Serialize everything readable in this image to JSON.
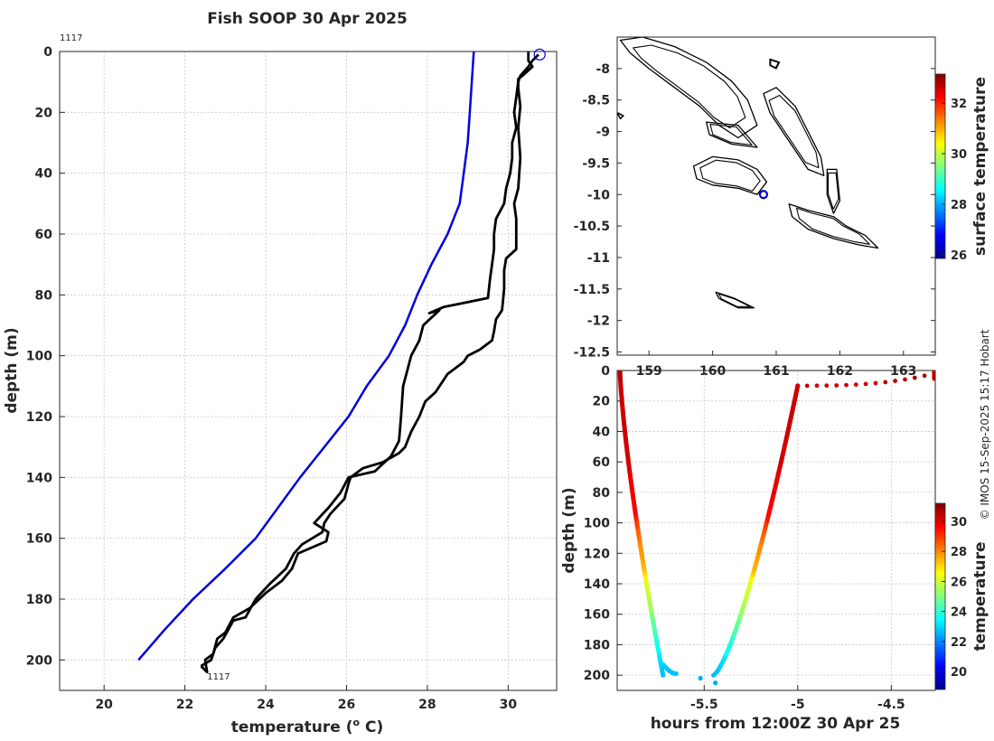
{
  "title": "Fish SOOP 30 Apr 2025",
  "credit": "© IMOS 15-Sep-2025 15:17 Hobart",
  "chart_data": [
    {
      "type": "line",
      "name": "profile-plot",
      "xlabel": "temperature (",
      "xlabel_sup": "o",
      "xlabel_unit": " C)",
      "ylabel": "depth (m)",
      "xlim": [
        18.9,
        31.2
      ],
      "ylim": [
        0,
        210
      ],
      "xticks": [
        20,
        22,
        24,
        26,
        28,
        30
      ],
      "yticks": [
        0,
        20,
        40,
        60,
        80,
        100,
        120,
        140,
        160,
        180,
        200
      ],
      "top_annotation": "1117",
      "bottom_annotation": "1117",
      "series": [
        {
          "name": "climatology",
          "color": "#0000dd",
          "points": [
            [
              29.15,
              0
            ],
            [
              29.1,
              10
            ],
            [
              29.05,
              20
            ],
            [
              29.0,
              30
            ],
            [
              28.9,
              40
            ],
            [
              28.8,
              50
            ],
            [
              28.5,
              60
            ],
            [
              28.1,
              70
            ],
            [
              27.75,
              80
            ],
            [
              27.45,
              90
            ],
            [
              27.05,
              100
            ],
            [
              26.5,
              110
            ],
            [
              26.05,
              120
            ],
            [
              25.45,
              130
            ],
            [
              24.85,
              140
            ],
            [
              24.3,
              150
            ],
            [
              23.75,
              160
            ],
            [
              23.0,
              170
            ],
            [
              22.2,
              180
            ],
            [
              21.5,
              190
            ],
            [
              20.85,
              200
            ]
          ]
        },
        {
          "name": "profile-descent",
          "color": "#000000",
          "points": [
            [
              30.5,
              0
            ],
            [
              30.5,
              3
            ],
            [
              30.6,
              5
            ],
            [
              30.35,
              8
            ],
            [
              30.25,
              9
            ],
            [
              30.25,
              12
            ],
            [
              30.3,
              18
            ],
            [
              30.25,
              25
            ],
            [
              30.3,
              35
            ],
            [
              30.25,
              45
            ],
            [
              30.15,
              50
            ],
            [
              30.2,
              55
            ],
            [
              30.2,
              60
            ],
            [
              30.2,
              65
            ],
            [
              29.95,
              68
            ],
            [
              29.9,
              72
            ],
            [
              29.9,
              78
            ],
            [
              29.85,
              85
            ],
            [
              29.7,
              88
            ],
            [
              29.65,
              92
            ],
            [
              29.6,
              95
            ],
            [
              29.3,
              98
            ],
            [
              29.0,
              100
            ],
            [
              28.9,
              102
            ],
            [
              28.5,
              106
            ],
            [
              28.2,
              112
            ],
            [
              27.95,
              115
            ],
            [
              27.8,
              120
            ],
            [
              27.6,
              125
            ],
            [
              27.45,
              130
            ],
            [
              27.3,
              132
            ],
            [
              26.9,
              135
            ],
            [
              26.4,
              137
            ],
            [
              26.1,
              140
            ],
            [
              26.05,
              142
            ],
            [
              25.95,
              147
            ],
            [
              25.6,
              152
            ],
            [
              25.45,
              155
            ],
            [
              25.4,
              158
            ],
            [
              24.9,
              162
            ],
            [
              24.7,
              165
            ],
            [
              24.5,
              170
            ],
            [
              24.1,
              175
            ],
            [
              23.75,
              180
            ],
            [
              23.5,
              186
            ],
            [
              23.2,
              187
            ],
            [
              22.95,
              193
            ],
            [
              22.75,
              196
            ],
            [
              22.65,
              200
            ],
            [
              22.4,
              202
            ]
          ]
        },
        {
          "name": "profile-ascent",
          "color": "#000000",
          "points": [
            [
              22.4,
              202
            ],
            [
              22.55,
              204
            ],
            [
              22.5,
              200
            ],
            [
              22.7,
              198
            ],
            [
              22.8,
              193
            ],
            [
              23.0,
              191
            ],
            [
              23.2,
              186
            ],
            [
              23.6,
              183
            ],
            [
              24.0,
              178
            ],
            [
              24.4,
              174
            ],
            [
              24.65,
              170
            ],
            [
              24.8,
              165
            ],
            [
              25.5,
              161
            ],
            [
              25.55,
              158
            ],
            [
              25.2,
              155
            ],
            [
              25.55,
              150
            ],
            [
              25.85,
              145
            ],
            [
              26.05,
              140
            ],
            [
              26.7,
              138
            ],
            [
              27.1,
              133
            ],
            [
              27.3,
              128
            ],
            [
              27.35,
              120
            ],
            [
              27.4,
              110
            ],
            [
              27.5,
              105
            ],
            [
              27.6,
              100
            ],
            [
              27.8,
              95
            ],
            [
              27.9,
              90
            ],
            [
              28.3,
              85
            ],
            [
              28.05,
              86
            ],
            [
              28.4,
              84
            ],
            [
              29.5,
              81
            ],
            [
              29.55,
              75
            ],
            [
              29.6,
              70
            ],
            [
              29.65,
              65
            ],
            [
              29.65,
              60
            ],
            [
              29.7,
              55
            ],
            [
              29.9,
              50
            ],
            [
              29.95,
              45
            ],
            [
              30.05,
              40
            ],
            [
              30.1,
              35
            ],
            [
              30.1,
              30
            ],
            [
              30.2,
              25
            ],
            [
              30.15,
              20
            ],
            [
              30.2,
              15
            ],
            [
              30.25,
              10
            ],
            [
              30.3,
              8
            ],
            [
              30.5,
              5
            ],
            [
              30.6,
              3
            ],
            [
              30.75,
              1
            ]
          ]
        }
      ],
      "marker_point": [
        30.78,
        1
      ]
    },
    {
      "type": "map",
      "name": "location-map",
      "colorbar_label": "surface temperature",
      "colorbar_range": [
        25.85,
        33.15
      ],
      "colorbar_ticks": [
        26,
        28,
        30,
        32
      ],
      "xlim": [
        158.5,
        163.5
      ],
      "ylim": [
        -12.55,
        -7.5
      ],
      "xticks": [
        159,
        160,
        161,
        162,
        163
      ],
      "yticks": [
        -8,
        -8.5,
        -9,
        -9.5,
        -10,
        -10.5,
        -11,
        -11.5,
        -12,
        -12.5
      ],
      "ytick_labels": [
        "-8",
        "-8.5",
        "-9",
        "-9.5",
        "-10",
        "-10.5",
        "-11",
        "-11.5",
        "-12",
        "-12.5"
      ],
      "location_marker": [
        160.8,
        -10.0
      ],
      "islands": [
        [
          [
            158.55,
            -7.55
          ],
          [
            158.9,
            -7.5
          ],
          [
            159.4,
            -7.65
          ],
          [
            159.9,
            -7.9
          ],
          [
            160.3,
            -8.2
          ],
          [
            160.55,
            -8.5
          ],
          [
            160.7,
            -8.9
          ],
          [
            160.4,
            -9.1
          ],
          [
            160.1,
            -8.9
          ],
          [
            159.8,
            -8.6
          ],
          [
            159.4,
            -8.3
          ],
          [
            159.0,
            -8.0
          ],
          [
            158.7,
            -7.75
          ]
        ],
        [
          [
            159.7,
            -9.55
          ],
          [
            160.0,
            -9.4
          ],
          [
            160.4,
            -9.45
          ],
          [
            160.7,
            -9.6
          ],
          [
            160.85,
            -9.8
          ],
          [
            160.7,
            -10.0
          ],
          [
            160.4,
            -9.9
          ],
          [
            160.0,
            -9.85
          ],
          [
            159.75,
            -9.75
          ]
        ],
        [
          [
            160.8,
            -8.4
          ],
          [
            161.0,
            -8.3
          ],
          [
            161.3,
            -8.6
          ],
          [
            161.5,
            -9.0
          ],
          [
            161.7,
            -9.4
          ],
          [
            161.75,
            -9.7
          ],
          [
            161.5,
            -9.6
          ],
          [
            161.3,
            -9.3
          ],
          [
            161.1,
            -9.0
          ],
          [
            160.9,
            -8.7
          ]
        ],
        [
          [
            161.2,
            -10.15
          ],
          [
            161.5,
            -10.25
          ],
          [
            161.9,
            -10.35
          ],
          [
            162.1,
            -10.5
          ],
          [
            162.4,
            -10.65
          ],
          [
            162.6,
            -10.85
          ],
          [
            162.3,
            -10.8
          ],
          [
            161.9,
            -10.7
          ],
          [
            161.5,
            -10.55
          ],
          [
            161.25,
            -10.35
          ]
        ],
        [
          [
            161.8,
            -9.6
          ],
          [
            161.95,
            -9.6
          ],
          [
            162.0,
            -10.1
          ],
          [
            161.9,
            -10.3
          ],
          [
            161.8,
            -10.0
          ]
        ],
        [
          [
            160.05,
            -11.55
          ],
          [
            160.35,
            -11.65
          ],
          [
            160.65,
            -11.8
          ],
          [
            160.4,
            -11.8
          ],
          [
            160.1,
            -11.65
          ]
        ],
        [
          [
            160.9,
            -7.85
          ],
          [
            161.05,
            -7.9
          ],
          [
            161.0,
            -8.0
          ],
          [
            160.9,
            -7.95
          ]
        ],
        [
          [
            158.5,
            -8.7
          ],
          [
            158.6,
            -8.75
          ],
          [
            158.55,
            -8.8
          ]
        ],
        [
          [
            159.9,
            -8.85
          ],
          [
            160.4,
            -8.9
          ],
          [
            160.7,
            -9.25
          ],
          [
            160.3,
            -9.2
          ],
          [
            159.95,
            -9.05
          ]
        ]
      ]
    },
    {
      "type": "scatter",
      "name": "time-depth-plot",
      "xlabel": "hours from 12:00Z 30 Apr 25",
      "ylabel": "depth (m)",
      "colorbar_label": "temperature",
      "colorbar_range": [
        18.8,
        31.2
      ],
      "colorbar_ticks": [
        20,
        22,
        24,
        26,
        28,
        30
      ],
      "xlim": [
        -5.965,
        -4.265
      ],
      "ylim": [
        0,
        210
      ],
      "xticks": [
        -5.5,
        -5,
        -4.5
      ],
      "xtick_labels": [
        "-5.5",
        "-5",
        "-4.5"
      ],
      "yticks": [
        0,
        20,
        40,
        60,
        80,
        100,
        120,
        140,
        160,
        180,
        200
      ],
      "descent": {
        "t_start": -5.95,
        "t_end": -5.72,
        "depth_end": 200
      },
      "ascent": {
        "t_start": -5.45,
        "t_end": -5.0,
        "depth_start": 200
      },
      "surface": {
        "t_start": -5.0,
        "t_end": -4.27,
        "depth_start": 10,
        "depth_end": 2
      },
      "bottom_points": [
        [
          -5.52,
          202
        ],
        [
          -5.44,
          205
        ]
      ]
    }
  ]
}
